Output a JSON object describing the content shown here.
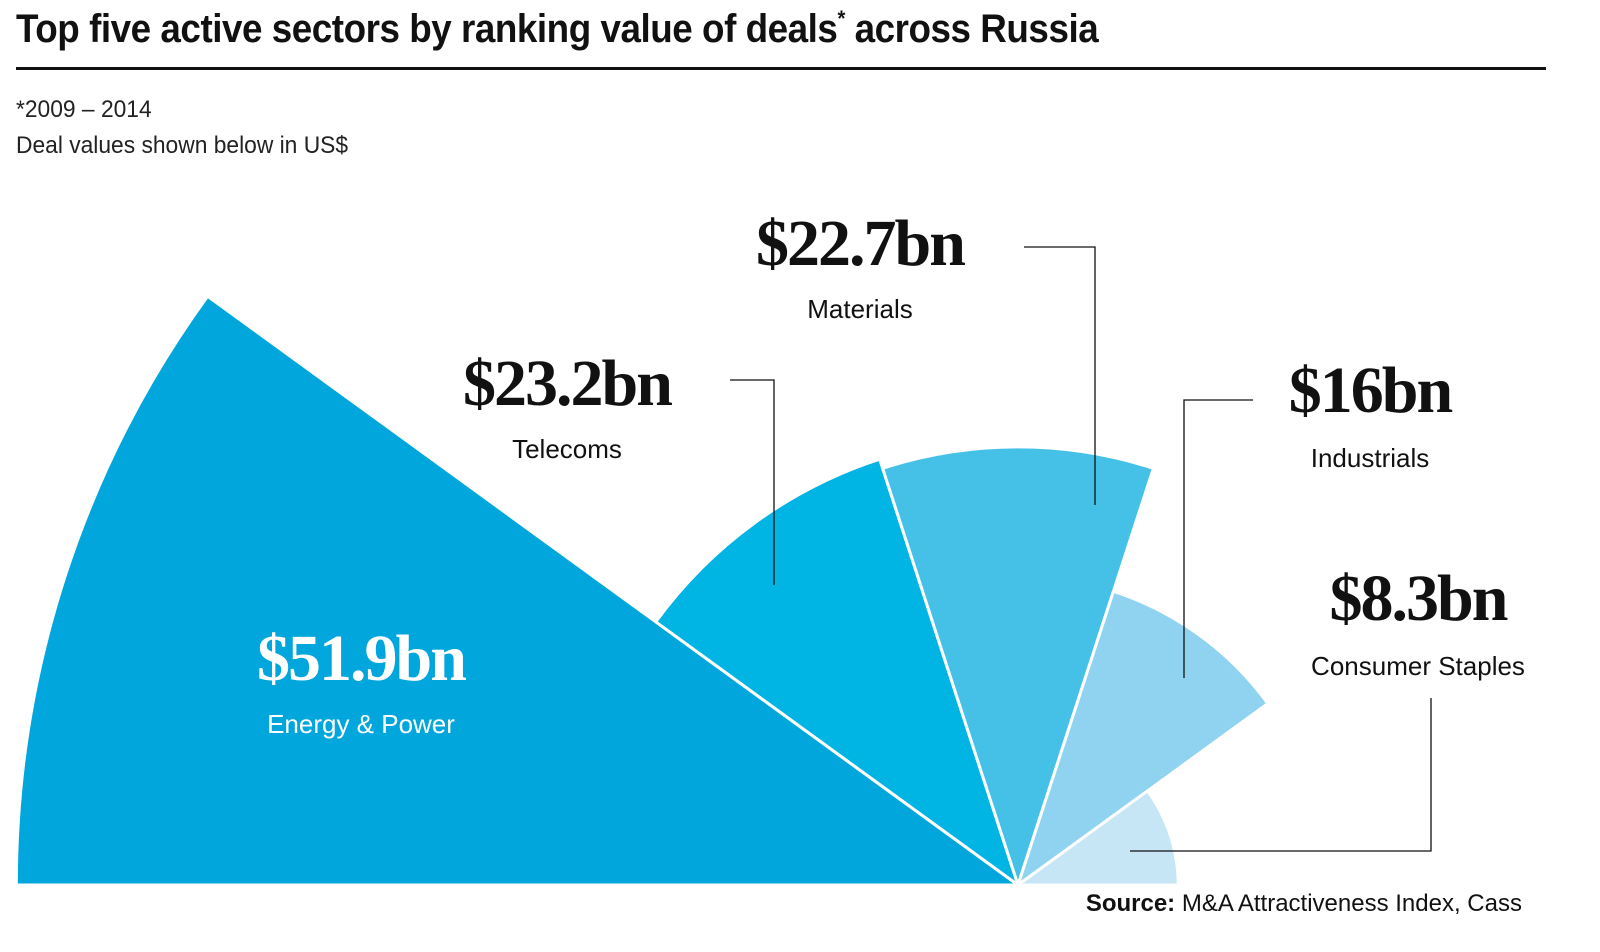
{
  "header": {
    "title": "Top five active sectors by ranking value of deals",
    "title_marker": "*",
    "title_suffix": " across Russia",
    "note_period": "*2009 – 2014",
    "note_units": "Deal values shown below in US$"
  },
  "source": {
    "label": "Source:",
    "text": " M&A Attractiveness Index, Cass"
  },
  "chart_data": {
    "type": "polar-area",
    "title": "Top five active sectors by ranking value of deals* across Russia",
    "subtitle": "*2009 – 2014; Deal values shown below in US$",
    "unit": "US$ bn",
    "categories": [
      "Energy & Power",
      "Telecoms",
      "Materials",
      "Industrials",
      "Consumer Staples"
    ],
    "values": [
      51.9,
      23.2,
      22.7,
      16,
      8.3
    ],
    "value_labels": [
      "$51.9bn",
      "$23.2bn",
      "$22.7bn",
      "$16bn",
      "$8.3bn"
    ],
    "colors": [
      "#00a6dc",
      "#00b4e3",
      "#45c1e8",
      "#8fd3f0",
      "#c6e6f6"
    ],
    "legend": "none",
    "grid": false
  }
}
